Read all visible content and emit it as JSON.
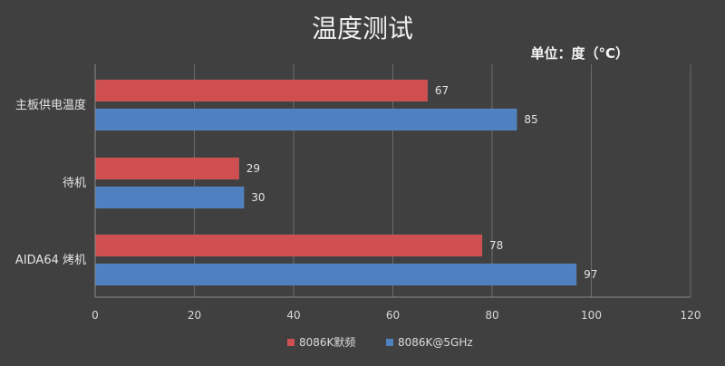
{
  "chart_data": {
    "type": "bar",
    "orientation": "horizontal",
    "title": "温度测试",
    "unit_label": "单位：度（°C）",
    "categories": [
      "主板供电温度",
      "待机",
      "AIDA64 烤机"
    ],
    "series": [
      {
        "name": "8086K默频",
        "color": "#cf4f50",
        "values": [
          67,
          29,
          78
        ]
      },
      {
        "name": "8086K@5GHz",
        "color": "#4f81c1",
        "values": [
          85,
          30,
          97
        ]
      }
    ],
    "xlim": [
      0,
      120
    ],
    "xticks": [
      0,
      20,
      40,
      60,
      80,
      100,
      120
    ],
    "grid": true,
    "legend": "bottom"
  },
  "colors": {
    "background": "#404040"
  }
}
